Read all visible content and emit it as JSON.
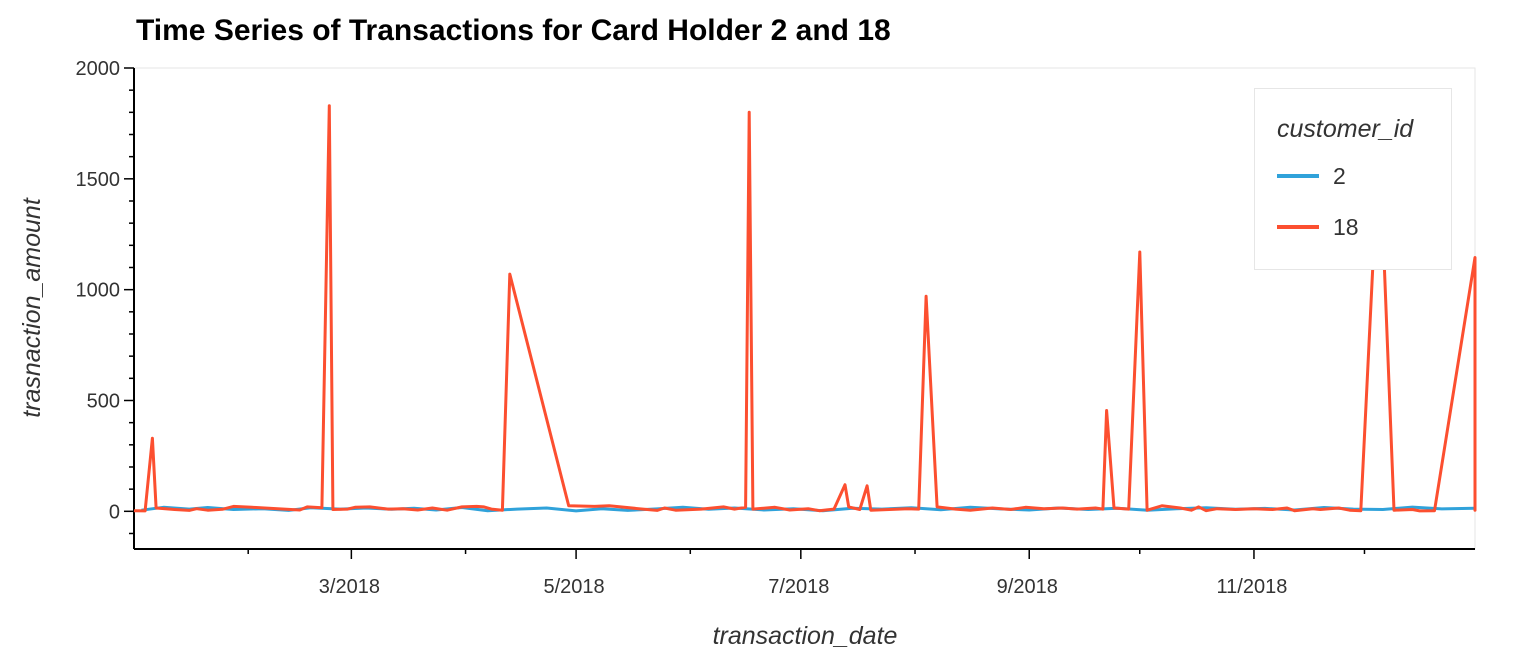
{
  "chart_data": {
    "type": "line",
    "title": "Time Series of Transactions for Card Holder 2 and 18",
    "xlabel": "transaction_date",
    "ylabel": "trasnaction_amount",
    "xlim": [
      "2018-01-01",
      "2018-12-31"
    ],
    "ylim": [
      -170,
      2000
    ],
    "y_ticks": [
      0,
      500,
      1000,
      1500,
      2000
    ],
    "x_ticks": [
      {
        "date": "2018-03-01",
        "label": "3/2018"
      },
      {
        "date": "2018-05-01",
        "label": "5/2018"
      },
      {
        "date": "2018-07-01",
        "label": "7/2018"
      },
      {
        "date": "2018-09-01",
        "label": "9/2018"
      },
      {
        "date": "2018-11-01",
        "label": "11/2018"
      }
    ],
    "grid": false,
    "legend": {
      "title": "customer_id",
      "placement": "top-right"
    },
    "series": [
      {
        "name": "2",
        "color": "#30a2da",
        "points": [
          [
            "2018-01-03",
            5
          ],
          [
            "2018-01-09",
            18
          ],
          [
            "2018-01-16",
            10
          ],
          [
            "2018-01-21",
            17
          ],
          [
            "2018-01-28",
            8
          ],
          [
            "2018-02-05",
            12
          ],
          [
            "2018-02-12",
            4
          ],
          [
            "2018-02-18",
            16
          ],
          [
            "2018-02-26",
            10
          ],
          [
            "2018-03-05",
            15
          ],
          [
            "2018-03-12",
            9
          ],
          [
            "2018-03-18",
            14
          ],
          [
            "2018-03-24",
            6
          ],
          [
            "2018-03-31",
            17
          ],
          [
            "2018-04-07",
            3
          ],
          [
            "2018-04-15",
            10
          ],
          [
            "2018-04-23",
            15
          ],
          [
            "2018-05-01",
            2
          ],
          [
            "2018-05-08",
            12
          ],
          [
            "2018-05-15",
            4
          ],
          [
            "2018-05-23",
            11
          ],
          [
            "2018-05-30",
            18
          ],
          [
            "2018-06-06",
            9
          ],
          [
            "2018-06-13",
            15
          ],
          [
            "2018-06-21",
            6
          ],
          [
            "2018-06-29",
            12
          ],
          [
            "2018-07-07",
            3
          ],
          [
            "2018-07-15",
            14
          ],
          [
            "2018-07-23",
            10
          ],
          [
            "2018-07-31",
            16
          ],
          [
            "2018-08-08",
            7
          ],
          [
            "2018-08-16",
            18
          ],
          [
            "2018-08-24",
            11
          ],
          [
            "2018-09-01",
            6
          ],
          [
            "2018-09-09",
            15
          ],
          [
            "2018-09-17",
            8
          ],
          [
            "2018-09-25",
            14
          ],
          [
            "2018-10-03",
            5
          ],
          [
            "2018-10-11",
            12
          ],
          [
            "2018-10-19",
            16
          ],
          [
            "2018-10-27",
            9
          ],
          [
            "2018-11-04",
            13
          ],
          [
            "2018-11-12",
            6
          ],
          [
            "2018-11-20",
            17
          ],
          [
            "2018-11-28",
            10
          ],
          [
            "2018-12-06",
            8
          ],
          [
            "2018-12-14",
            19
          ],
          [
            "2018-12-22",
            11
          ],
          [
            "2018-12-31",
            14
          ]
        ]
      },
      {
        "name": "18",
        "color": "#fc4f30",
        "points": [
          [
            "2018-01-01",
            3
          ],
          [
            "2018-01-04",
            2
          ],
          [
            "2018-01-06",
            330
          ],
          [
            "2018-01-07",
            15
          ],
          [
            "2018-01-12",
            8
          ],
          [
            "2018-01-16",
            4
          ],
          [
            "2018-01-18",
            12
          ],
          [
            "2018-01-21",
            5
          ],
          [
            "2018-01-25",
            9
          ],
          [
            "2018-01-28",
            22
          ],
          [
            "2018-02-02",
            18
          ],
          [
            "2018-02-09",
            12
          ],
          [
            "2018-02-15",
            6
          ],
          [
            "2018-02-17",
            20
          ],
          [
            "2018-02-21",
            16
          ],
          [
            "2018-02-23",
            1830
          ],
          [
            "2018-02-24",
            8
          ],
          [
            "2018-02-28",
            10
          ],
          [
            "2018-03-02",
            18
          ],
          [
            "2018-03-06",
            20
          ],
          [
            "2018-03-11",
            10
          ],
          [
            "2018-03-15",
            12
          ],
          [
            "2018-03-19",
            6
          ],
          [
            "2018-03-23",
            15
          ],
          [
            "2018-03-27",
            5
          ],
          [
            "2018-03-31",
            20
          ],
          [
            "2018-04-04",
            22
          ],
          [
            "2018-04-06",
            20
          ],
          [
            "2018-04-08",
            10
          ],
          [
            "2018-04-11",
            5
          ],
          [
            "2018-04-13",
            1070
          ],
          [
            "2018-04-29",
            25
          ],
          [
            "2018-05-06",
            22
          ],
          [
            "2018-05-10",
            25
          ],
          [
            "2018-05-18",
            12
          ],
          [
            "2018-05-23",
            4
          ],
          [
            "2018-05-25",
            15
          ],
          [
            "2018-05-28",
            5
          ],
          [
            "2018-06-04",
            10
          ],
          [
            "2018-06-10",
            20
          ],
          [
            "2018-06-13",
            10
          ],
          [
            "2018-06-16",
            18
          ],
          [
            "2018-06-17",
            1800
          ],
          [
            "2018-06-18",
            10
          ],
          [
            "2018-06-24",
            18
          ],
          [
            "2018-06-28",
            6
          ],
          [
            "2018-07-03",
            12
          ],
          [
            "2018-07-06",
            3
          ],
          [
            "2018-07-10",
            10
          ],
          [
            "2018-07-13",
            120
          ],
          [
            "2018-07-14",
            20
          ],
          [
            "2018-07-17",
            8
          ],
          [
            "2018-07-19",
            115
          ],
          [
            "2018-07-20",
            5
          ],
          [
            "2018-07-25",
            8
          ],
          [
            "2018-07-30",
            12
          ],
          [
            "2018-08-02",
            10
          ],
          [
            "2018-08-04",
            970
          ],
          [
            "2018-08-07",
            20
          ],
          [
            "2018-08-12",
            10
          ],
          [
            "2018-08-16",
            5
          ],
          [
            "2018-08-22",
            15
          ],
          [
            "2018-08-27",
            8
          ],
          [
            "2018-08-31",
            18
          ],
          [
            "2018-09-05",
            12
          ],
          [
            "2018-09-10",
            15
          ],
          [
            "2018-09-14",
            10
          ],
          [
            "2018-09-19",
            15
          ],
          [
            "2018-09-21",
            10
          ],
          [
            "2018-09-22",
            455
          ],
          [
            "2018-09-24",
            15
          ],
          [
            "2018-09-28",
            10
          ],
          [
            "2018-10-01",
            1170
          ],
          [
            "2018-10-03",
            5
          ],
          [
            "2018-10-07",
            25
          ],
          [
            "2018-10-12",
            15
          ],
          [
            "2018-10-15",
            5
          ],
          [
            "2018-10-17",
            20
          ],
          [
            "2018-10-19",
            3
          ],
          [
            "2018-10-22",
            12
          ],
          [
            "2018-10-27",
            8
          ],
          [
            "2018-11-01",
            12
          ],
          [
            "2018-11-06",
            8
          ],
          [
            "2018-11-10",
            15
          ],
          [
            "2018-11-12",
            3
          ],
          [
            "2018-11-17",
            12
          ],
          [
            "2018-11-19",
            8
          ],
          [
            "2018-11-24",
            15
          ],
          [
            "2018-11-27",
            5
          ],
          [
            "2018-11-30",
            3
          ],
          [
            "2018-12-05",
            1690
          ],
          [
            "2018-12-09",
            5
          ],
          [
            "2018-12-14",
            8
          ],
          [
            "2018-12-16",
            2
          ],
          [
            "2018-12-20",
            3
          ],
          [
            "2018-12-31",
            1145
          ],
          [
            "2018-12-31",
            5
          ],
          [
            "2018-12-31",
            15
          ]
        ]
      }
    ]
  }
}
